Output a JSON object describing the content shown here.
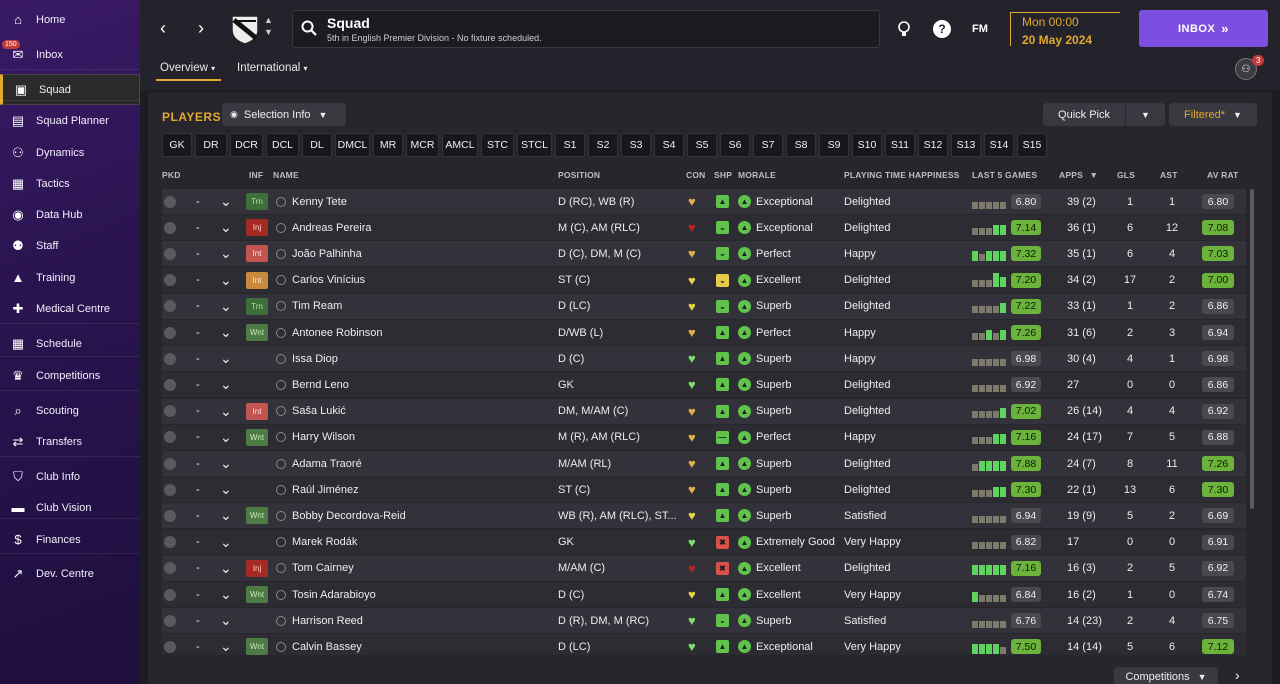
{
  "sidebar": {
    "inbox_badge": "150",
    "items": [
      {
        "label": "Home",
        "icon": "home-icon",
        "glyph": "⌂"
      },
      {
        "label": "Inbox",
        "icon": "inbox-icon",
        "glyph": "✉"
      },
      {
        "label": "Squad",
        "icon": "shirt-icon",
        "glyph": "▣"
      },
      {
        "label": "Squad Planner",
        "icon": "clipboard-icon",
        "glyph": "▤"
      },
      {
        "label": "Dynamics",
        "icon": "dynamics-icon",
        "glyph": "⚇"
      },
      {
        "label": "Tactics",
        "icon": "tactics-icon",
        "glyph": "▦"
      },
      {
        "label": "Data Hub",
        "icon": "data-hub-icon",
        "glyph": "◉"
      },
      {
        "label": "Staff",
        "icon": "staff-icon",
        "glyph": "⚉"
      },
      {
        "label": "Training",
        "icon": "training-icon",
        "glyph": "▲"
      },
      {
        "label": "Medical Centre",
        "icon": "medical-icon",
        "glyph": "✚"
      },
      {
        "label": "Schedule",
        "icon": "calendar-icon",
        "glyph": "▦"
      },
      {
        "label": "Competitions",
        "icon": "trophy-icon",
        "glyph": "♛"
      },
      {
        "label": "Scouting",
        "icon": "search-icon",
        "glyph": "⌕"
      },
      {
        "label": "Transfers",
        "icon": "transfers-icon",
        "glyph": "⇄"
      },
      {
        "label": "Club Info",
        "icon": "shield-icon",
        "glyph": "⛉"
      },
      {
        "label": "Club Vision",
        "icon": "briefcase-icon",
        "glyph": "▬"
      },
      {
        "label": "Finances",
        "icon": "finances-icon",
        "glyph": "$"
      },
      {
        "label": "Dev. Centre",
        "icon": "dev-centre-icon",
        "glyph": "↗"
      }
    ]
  },
  "header": {
    "title": "Squad",
    "subtitle": "5th in English Premier Division - No fixture scheduled.",
    "fm_label": "FM",
    "help_label": "?",
    "date_time": "Mon 00:00",
    "date": "20 May 2024",
    "inbox_button": "INBOX",
    "tabs": [
      "Overview",
      "International"
    ],
    "avatar_badge": "3"
  },
  "main": {
    "section_title": "PLAYERS",
    "selection_info": "Selection Info",
    "quick_pick": "Quick Pick",
    "filtered": "Filtered*",
    "competitions": "Competitions",
    "positions": [
      "GK",
      "DR",
      "DCR",
      "DCL",
      "DL",
      "DMCL",
      "MR",
      "MCR",
      "AMCL",
      "STC",
      "STCL",
      "S1",
      "S2",
      "S3",
      "S4",
      "S5",
      "S6",
      "S7",
      "S8",
      "S9",
      "S10",
      "S11",
      "S12",
      "S13",
      "S14",
      "S15"
    ],
    "columns": [
      "PKD",
      "INF",
      "NAME",
      "POSITION",
      "CON",
      "SHP",
      "MORALE",
      "PLAYING TIME HAPPINESS",
      "LAST 5 GAMES",
      "APPS",
      "GLS",
      "AST",
      "AV RAT"
    ]
  },
  "colors": {
    "accent": "#e0a92f",
    "inbox": "#7d4fe0",
    "rating_green": "#6bb33a",
    "bar_green": "#5fd35f",
    "bar_grey": "#7c7a6a",
    "morale_green": "#5fc34c"
  },
  "players": [
    {
      "name": "Kenny Tete",
      "inf": "Trn",
      "inf_class": "inf-trn",
      "position": "D (RC), WB (R)",
      "con": "gold",
      "shp": "up",
      "morale": "Exceptional",
      "happiness": "Delighted",
      "last5": [
        0,
        0,
        0,
        0,
        0
      ],
      "last5_rating": "6.80",
      "last5_green": false,
      "apps": "39 (2)",
      "gls": "1",
      "ast": "1",
      "av_rat": "6.80",
      "av_green": false
    },
    {
      "name": "Andreas Pereira",
      "inf": "Inj",
      "inf_class": "inf-inj",
      "position": "M (C), AM (RLC)",
      "con": "red",
      "shp": "down",
      "morale": "Exceptional",
      "happiness": "Delighted",
      "last5": [
        0,
        0,
        0,
        1,
        1
      ],
      "last5_rating": "7.14",
      "last5_green": true,
      "apps": "36 (1)",
      "gls": "6",
      "ast": "12",
      "av_rat": "7.08",
      "av_green": true
    },
    {
      "name": "João Palhinha",
      "inf": "Int",
      "inf_class": "inf-int",
      "position": "D (C), DM, M (C)",
      "con": "gold",
      "shp": "down",
      "morale": "Perfect",
      "happiness": "Happy",
      "last5": [
        1,
        0,
        1,
        1,
        1
      ],
      "last5_rating": "7.32",
      "last5_green": true,
      "apps": "35 (1)",
      "gls": "6",
      "ast": "4",
      "av_rat": "7.03",
      "av_green": true
    },
    {
      "name": "Carlos Vinícius",
      "inf": "Int",
      "inf_class": "inf-int-o",
      "position": "ST (C)",
      "con": "yellow",
      "shp": "downY",
      "morale": "Excellent",
      "happiness": "Delighted",
      "last5": [
        0,
        0,
        0,
        2,
        1
      ],
      "last5_rating": "7.20",
      "last5_green": true,
      "apps": "34 (2)",
      "gls": "17",
      "ast": "2",
      "av_rat": "7.00",
      "av_green": true
    },
    {
      "name": "Tim Ream",
      "inf": "Trn",
      "inf_class": "inf-trn",
      "position": "D (LC)",
      "con": "yellow",
      "shp": "down",
      "morale": "Superb",
      "happiness": "Delighted",
      "last5": [
        0,
        0,
        0,
        0,
        1
      ],
      "last5_rating": "7.22",
      "last5_green": true,
      "apps": "33 (1)",
      "gls": "1",
      "ast": "2",
      "av_rat": "6.86",
      "av_green": false
    },
    {
      "name": "Antonee Robinson",
      "inf": "Wnt",
      "inf_class": "inf-wnt",
      "position": "D/WB (L)",
      "con": "gold",
      "shp": "up",
      "morale": "Perfect",
      "happiness": "Happy",
      "last5": [
        0,
        0,
        1,
        0,
        1
      ],
      "last5_rating": "7.26",
      "last5_green": true,
      "apps": "31 (6)",
      "gls": "2",
      "ast": "3",
      "av_rat": "6.94",
      "av_green": false
    },
    {
      "name": "Issa Diop",
      "inf": "",
      "inf_class": "",
      "position": "D (C)",
      "con": "green",
      "shp": "up",
      "morale": "Superb",
      "happiness": "Happy",
      "last5": [
        0,
        0,
        0,
        0,
        0
      ],
      "last5_rating": "6.98",
      "last5_green": false,
      "apps": "30 (4)",
      "gls": "4",
      "ast": "1",
      "av_rat": "6.98",
      "av_green": false
    },
    {
      "name": "Bernd Leno",
      "inf": "",
      "inf_class": "",
      "position": "GK",
      "con": "green",
      "shp": "up",
      "morale": "Superb",
      "happiness": "Delighted",
      "last5": [
        0,
        0,
        0,
        0,
        0
      ],
      "last5_rating": "6.92",
      "last5_green": false,
      "apps": "27",
      "gls": "0",
      "ast": "0",
      "av_rat": "6.86",
      "av_green": false
    },
    {
      "name": "Saša Lukić",
      "inf": "Int",
      "inf_class": "inf-int",
      "position": "DM, M/AM (C)",
      "con": "gold",
      "shp": "up",
      "morale": "Superb",
      "happiness": "Delighted",
      "last5": [
        0,
        0,
        0,
        0,
        1
      ],
      "last5_rating": "7.02",
      "last5_green": true,
      "apps": "26 (14)",
      "gls": "4",
      "ast": "4",
      "av_rat": "6.92",
      "av_green": false
    },
    {
      "name": "Harry Wilson",
      "inf": "Wnt",
      "inf_class": "inf-wnt",
      "position": "M (R), AM (RLC)",
      "con": "gold",
      "shp": "flat",
      "morale": "Perfect",
      "happiness": "Happy",
      "last5": [
        0,
        0,
        0,
        1,
        1
      ],
      "last5_rating": "7.16",
      "last5_green": true,
      "apps": "24 (17)",
      "gls": "7",
      "ast": "5",
      "av_rat": "6.88",
      "av_green": false
    },
    {
      "name": "Adama Traoré",
      "inf": "",
      "inf_class": "",
      "position": "M/AM (RL)",
      "con": "gold",
      "shp": "up",
      "morale": "Superb",
      "happiness": "Delighted",
      "last5": [
        0,
        1,
        1,
        1,
        1
      ],
      "last5_rating": "7.88",
      "last5_green": true,
      "apps": "24 (7)",
      "gls": "8",
      "ast": "11",
      "av_rat": "7.26",
      "av_green": true
    },
    {
      "name": "Raúl Jiménez",
      "inf": "",
      "inf_class": "",
      "position": "ST (C)",
      "con": "gold",
      "shp": "up",
      "morale": "Superb",
      "happiness": "Delighted",
      "last5": [
        0,
        0,
        0,
        1,
        1
      ],
      "last5_rating": "7.30",
      "last5_green": true,
      "apps": "22 (1)",
      "gls": "13",
      "ast": "6",
      "av_rat": "7.30",
      "av_green": true
    },
    {
      "name": "Bobby Decordova-Reid",
      "inf": "Wnt",
      "inf_class": "inf-wnt",
      "position": "WB (R), AM (RLC), ST...",
      "con": "yellow",
      "shp": "up",
      "morale": "Superb",
      "happiness": "Satisfied",
      "last5": [
        0,
        0,
        0,
        0,
        0
      ],
      "last5_rating": "6.94",
      "last5_green": false,
      "apps": "19 (9)",
      "gls": "5",
      "ast": "2",
      "av_rat": "6.69",
      "av_green": false
    },
    {
      "name": "Marek Rodák",
      "inf": "",
      "inf_class": "",
      "position": "GK",
      "con": "green",
      "shp": "bad",
      "morale": "Extremely Good",
      "happiness": "Very Happy",
      "last5": [
        0,
        0,
        0,
        0,
        0
      ],
      "last5_rating": "6.82",
      "last5_green": false,
      "apps": "17",
      "gls": "0",
      "ast": "0",
      "av_rat": "6.91",
      "av_green": false
    },
    {
      "name": "Tom Cairney",
      "inf": "Inj",
      "inf_class": "inf-inj",
      "position": "M/AM (C)",
      "con": "red",
      "shp": "bad",
      "morale": "Excellent",
      "happiness": "Delighted",
      "last5": [
        1,
        1,
        1,
        1,
        1
      ],
      "last5_rating": "7.16",
      "last5_green": true,
      "apps": "16 (3)",
      "gls": "2",
      "ast": "5",
      "av_rat": "6.92",
      "av_green": false
    },
    {
      "name": "Tosin Adarabioyo",
      "inf": "Wnt",
      "inf_class": "inf-wnt",
      "position": "D (C)",
      "con": "yellow",
      "shp": "up",
      "morale": "Excellent",
      "happiness": "Very Happy",
      "last5": [
        1,
        0,
        0,
        0,
        0
      ],
      "last5_rating": "6.84",
      "last5_green": false,
      "apps": "16 (2)",
      "gls": "1",
      "ast": "0",
      "av_rat": "6.74",
      "av_green": false
    },
    {
      "name": "Harrison Reed",
      "inf": "",
      "inf_class": "",
      "position": "D (R), DM, M (RC)",
      "con": "green",
      "shp": "down",
      "morale": "Superb",
      "happiness": "Satisfied",
      "last5": [
        0,
        0,
        0,
        0,
        0
      ],
      "last5_rating": "6.76",
      "last5_green": false,
      "apps": "14 (23)",
      "gls": "2",
      "ast": "4",
      "av_rat": "6.75",
      "av_green": false
    },
    {
      "name": "Calvin Bassey",
      "inf": "Wnt",
      "inf_class": "inf-wnt",
      "position": "D (LC)",
      "con": "green",
      "shp": "up",
      "morale": "Exceptional",
      "happiness": "Very Happy",
      "last5": [
        1,
        1,
        1,
        1,
        0
      ],
      "last5_rating": "7.50",
      "last5_green": true,
      "apps": "14 (14)",
      "gls": "5",
      "ast": "6",
      "av_rat": "7.12",
      "av_green": true
    }
  ]
}
